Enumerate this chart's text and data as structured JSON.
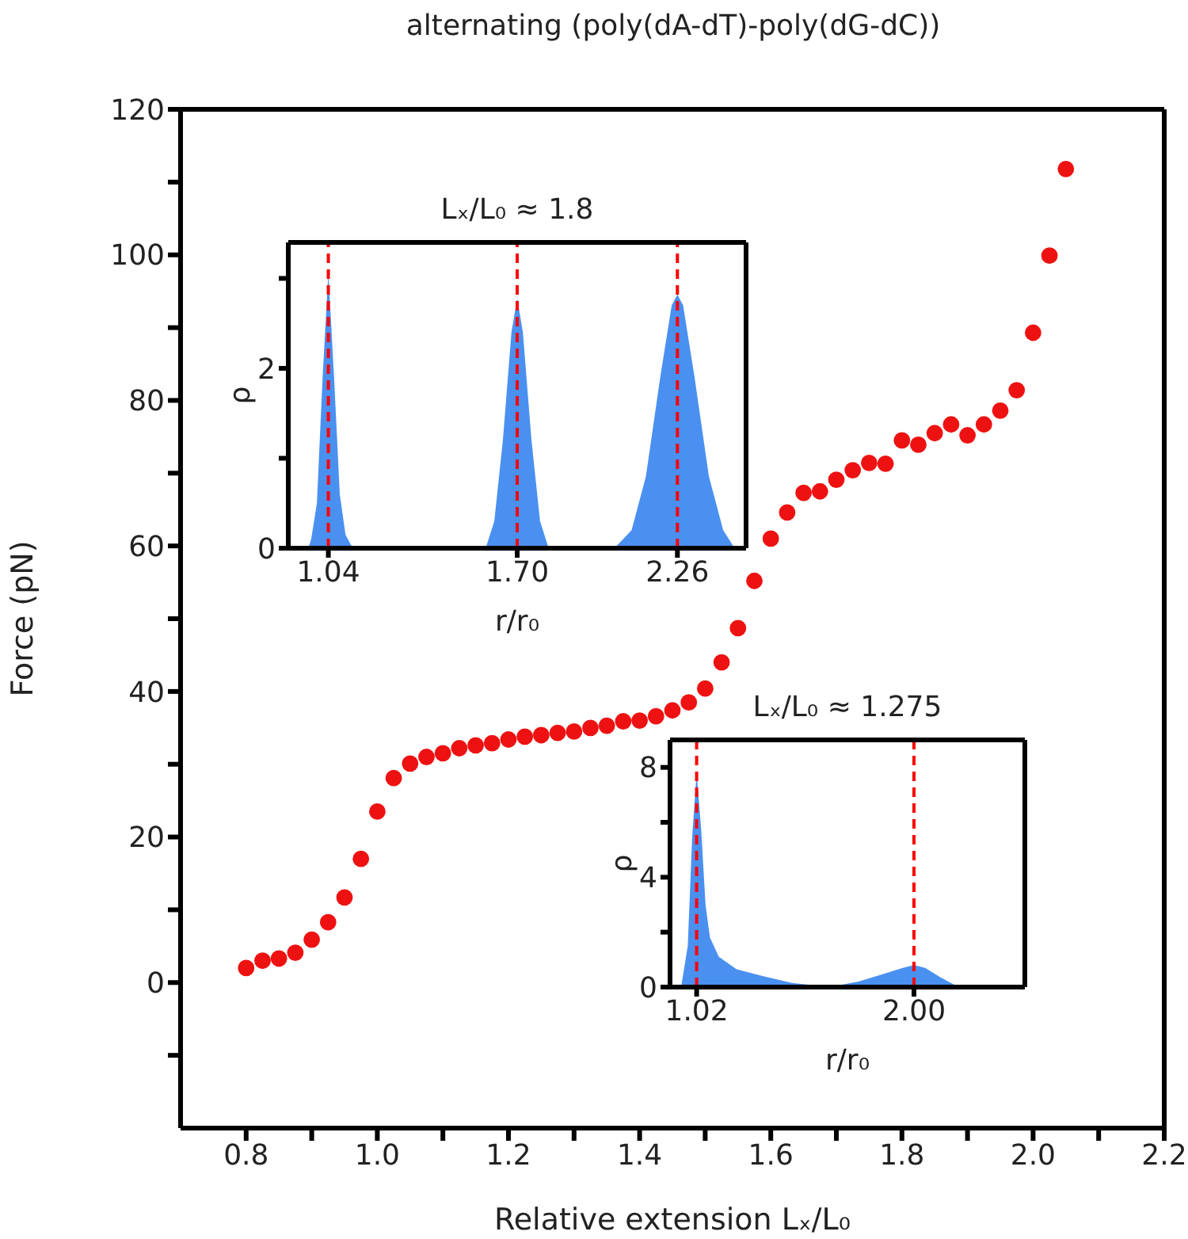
{
  "chart_data": [
    {
      "type": "scatter",
      "title": "alternating (poly(dA-dT)-poly(dG-dC))",
      "xlabel": "Relative extension Lₓ/L₀",
      "ylabel": "Force (pN)",
      "marker": "circle",
      "x": [
        0.8,
        0.825,
        0.85,
        0.875,
        0.9,
        0.925,
        0.95,
        0.975,
        1.0,
        1.025,
        1.05,
        1.075,
        1.1,
        1.125,
        1.15,
        1.175,
        1.2,
        1.225,
        1.25,
        1.275,
        1.3,
        1.325,
        1.35,
        1.375,
        1.4,
        1.425,
        1.45,
        1.475,
        1.5,
        1.525,
        1.55,
        1.575,
        1.6,
        1.625,
        1.65,
        1.675,
        1.7,
        1.725,
        1.75,
        1.775,
        1.8,
        1.825,
        1.85,
        1.875,
        1.9,
        1.925,
        1.95,
        1.975,
        2.0,
        2.025,
        2.05
      ],
      "series": [
        {
          "color": "#ee1111",
          "values": [
            2,
            3,
            3.3,
            4.1,
            5.9,
            8.3,
            11.7,
            17,
            23.5,
            28.1,
            30.1,
            31,
            31.5,
            32.2,
            32.6,
            32.9,
            33.4,
            33.8,
            34,
            34.3,
            34.5,
            35,
            35.3,
            35.9,
            36,
            36.6,
            37.4,
            38.5,
            40.4,
            44,
            48.7,
            55.2,
            61,
            64.6,
            67.3,
            67.5,
            69.1,
            70.4,
            71.4,
            71.3,
            74.5,
            73.9,
            75.5,
            76.7,
            75.2,
            76.7,
            78.6,
            81.4,
            89.3,
            99.9,
            111.8
          ]
        }
      ],
      "xlim": [
        0.7,
        2.2
      ],
      "xticks": [
        0.8,
        {
          "value": 0.9,
          "label": null
        },
        {
          "value": 1.0,
          "label": "1.0"
        },
        {
          "value": 1.1,
          "label": null
        },
        1.2,
        {
          "value": 1.3,
          "label": null
        },
        1.4,
        {
          "value": 1.5,
          "label": null
        },
        1.6,
        {
          "value": 1.7,
          "label": null
        },
        1.8,
        {
          "value": 1.9,
          "label": null
        },
        {
          "value": 2.0,
          "label": "2.0"
        },
        {
          "value": 2.1,
          "label": null
        },
        2.2
      ],
      "ylim": [
        -20,
        120
      ],
      "yticks": [
        {
          "value": -10,
          "label": null
        },
        0,
        {
          "value": 10,
          "label": null
        },
        20,
        {
          "value": 30,
          "label": null
        },
        40,
        {
          "value": 50,
          "label": null
        },
        60,
        {
          "value": 70,
          "label": null
        },
        80,
        {
          "value": 90,
          "label": null
        },
        100,
        {
          "value": 110,
          "label": null
        },
        120
      ],
      "grid": false,
      "legend": false
    },
    {
      "type": "area",
      "title": "Lₓ/L₀ ≈ 1.8",
      "xlabel": "r/r₀",
      "ylabel": "ρ",
      "x": [
        0.9,
        0.97,
        0.98,
        1.0,
        1.02,
        1.04,
        1.06,
        1.08,
        1.1,
        1.12,
        1.15,
        1.59,
        1.62,
        1.65,
        1.68,
        1.7,
        1.72,
        1.75,
        1.78,
        1.81,
        2.04,
        2.1,
        2.15,
        2.2,
        2.24,
        2.26,
        2.28,
        2.32,
        2.37,
        2.42,
        2.46,
        2.5
      ],
      "series": [
        {
          "color": "#4a90f0",
          "values": [
            0,
            0,
            0.1,
            0.5,
            1.9,
            3.06,
            1.9,
            0.6,
            0.15,
            0.03,
            0,
            0,
            0.3,
            1.2,
            2.4,
            2.78,
            2.4,
            1.2,
            0.3,
            0,
            0,
            0.2,
            0.8,
            1.9,
            2.7,
            2.82,
            2.7,
            1.9,
            0.8,
            0.2,
            0,
            0
          ]
        }
      ],
      "xlim": [
        0.9,
        2.5
      ],
      "xticks": [
        1.04,
        {
          "value": 1.7,
          "label": "1.70"
        },
        2.26
      ],
      "ylim": [
        0,
        3.4
      ],
      "yticks": [
        0,
        {
          "value": 1,
          "label": null
        },
        2,
        {
          "value": 3,
          "label": null
        }
      ],
      "ref_lines": [
        {
          "axis": "x",
          "value": 1.04,
          "color": "#ff0000",
          "line_style": "dashed"
        },
        {
          "axis": "x",
          "value": 1.7,
          "color": "#ff0000",
          "line_style": "dashed"
        },
        {
          "axis": "x",
          "value": 2.26,
          "color": "#ff0000",
          "line_style": "dashed"
        }
      ]
    },
    {
      "type": "area",
      "title": "Lₓ/L₀ ≈ 1.275",
      "xlabel": "r/r₀",
      "ylabel": "ρ",
      "x": [
        0.9,
        0.95,
        0.98,
        1.0,
        1.02,
        1.04,
        1.06,
        1.08,
        1.12,
        1.2,
        1.32,
        1.45,
        1.57,
        1.65,
        1.75,
        1.85,
        1.95,
        2.0,
        2.05,
        2.12,
        2.19,
        2.22,
        2.5
      ],
      "series": [
        {
          "color": "#4a90f0",
          "values": [
            0,
            0,
            1.5,
            5.5,
            7.8,
            5.8,
            3,
            1.8,
            1.1,
            0.65,
            0.4,
            0.15,
            0.05,
            0.05,
            0.2,
            0.45,
            0.7,
            0.8,
            0.7,
            0.35,
            0.05,
            0,
            0
          ]
        }
      ],
      "xlim": [
        0.9,
        2.5
      ],
      "xticks": [
        1.02,
        {
          "value": 2,
          "label": "2.00"
        }
      ],
      "ylim": [
        0,
        9
      ],
      "yticks": [
        0,
        {
          "value": 2,
          "label": null
        },
        4,
        {
          "value": 6,
          "label": null
        },
        8
      ],
      "ref_lines": [
        {
          "axis": "x",
          "value": 1.02,
          "color": "#ff0000",
          "line_style": "dashed"
        },
        {
          "axis": "x",
          "value": 2,
          "color": "#ff0000",
          "line_style": "dashed"
        }
      ]
    }
  ]
}
